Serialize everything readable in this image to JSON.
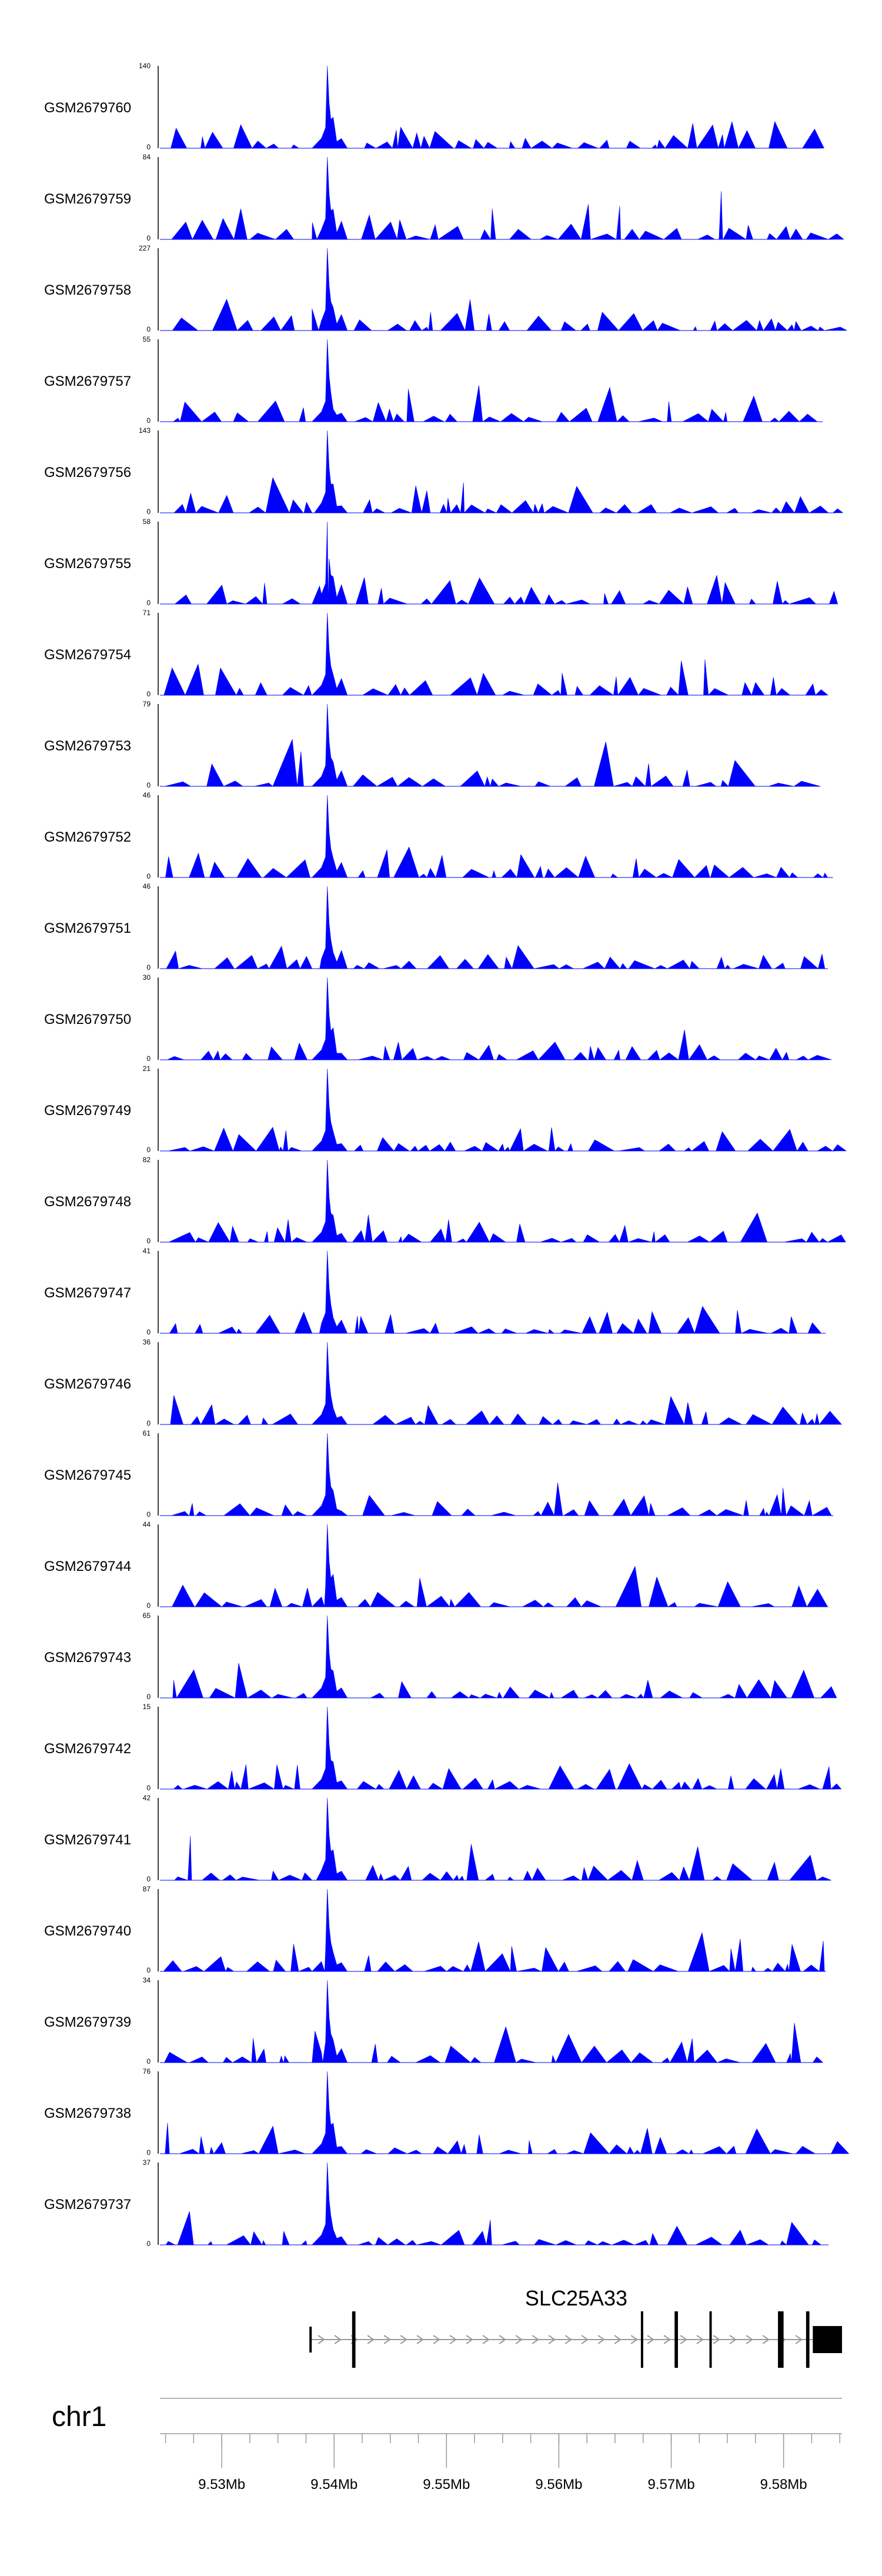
{
  "chart_data": {
    "type": "area",
    "title": "",
    "chromosome": "chr1",
    "color": "#0000ff",
    "axis_color": "#000000",
    "region": [
      9.5245,
      9.5852
    ],
    "axis_ticks": [
      {
        "value": 9.53,
        "label": "9.53Mb"
      },
      {
        "value": 9.54,
        "label": "9.54Mb"
      },
      {
        "value": 9.55,
        "label": "9.55Mb"
      },
      {
        "value": 9.56,
        "label": "9.56Mb"
      },
      {
        "value": 9.57,
        "label": "9.57Mb"
      },
      {
        "value": 9.58,
        "label": "9.58Mb"
      }
    ],
    "minor_tick_step": 0.0025,
    "peak_position": 9.5395,
    "tracks": [
      {
        "name": "GSM2679760",
        "ymax": "140",
        "ymin": "0",
        "max": 140
      },
      {
        "name": "GSM2679759",
        "ymax": "84",
        "ymin": "0",
        "max": 84
      },
      {
        "name": "GSM2679758",
        "ymax": "227",
        "ymin": "0",
        "max": 227
      },
      {
        "name": "GSM2679757",
        "ymax": "55",
        "ymin": "0",
        "max": 55
      },
      {
        "name": "GSM2679756",
        "ymax": "143",
        "ymin": "0",
        "max": 143
      },
      {
        "name": "GSM2679755",
        "ymax": "58",
        "ymin": "0",
        "max": 58
      },
      {
        "name": "GSM2679754",
        "ymax": "71",
        "ymin": "0",
        "max": 71
      },
      {
        "name": "GSM2679753",
        "ymax": "79",
        "ymin": "0",
        "max": 79
      },
      {
        "name": "GSM2679752",
        "ymax": "46",
        "ymin": "0",
        "max": 46
      },
      {
        "name": "GSM2679751",
        "ymax": "46",
        "ymin": "0",
        "max": 46
      },
      {
        "name": "GSM2679750",
        "ymax": "30",
        "ymin": "0",
        "max": 30
      },
      {
        "name": "GSM2679749",
        "ymax": "21",
        "ymin": "0",
        "max": 21
      },
      {
        "name": "GSM2679748",
        "ymax": "82",
        "ymin": "0",
        "max": 82
      },
      {
        "name": "GSM2679747",
        "ymax": "41",
        "ymin": "0",
        "max": 41
      },
      {
        "name": "GSM2679746",
        "ymax": "36",
        "ymin": "0",
        "max": 36
      },
      {
        "name": "GSM2679745",
        "ymax": "61",
        "ymin": "0",
        "max": 61
      },
      {
        "name": "GSM2679744",
        "ymax": "44",
        "ymin": "0",
        "max": 44
      },
      {
        "name": "GSM2679743",
        "ymax": "65",
        "ymin": "0",
        "max": 65
      },
      {
        "name": "GSM2679742",
        "ymax": "15",
        "ymin": "0",
        "max": 15
      },
      {
        "name": "GSM2679741",
        "ymax": "42",
        "ymin": "0",
        "max": 42
      },
      {
        "name": "GSM2679740",
        "ymax": "87",
        "ymin": "0",
        "max": 87
      },
      {
        "name": "GSM2679739",
        "ymax": "34",
        "ymin": "0",
        "max": 34
      },
      {
        "name": "GSM2679738",
        "ymax": "76",
        "ymin": "0",
        "max": 76
      },
      {
        "name": "GSM2679737",
        "ymax": "37",
        "ymin": "0",
        "max": 37
      }
    ],
    "gene": {
      "name": "SLC25A33",
      "strand": "+",
      "start": 9.5378,
      "end": 9.5852,
      "exons": [
        {
          "start": 9.5378,
          "end": 9.538
        },
        {
          "start": 9.5416,
          "end": 9.5419
        },
        {
          "start": 9.5673,
          "end": 9.5675
        },
        {
          "start": 9.5703,
          "end": 9.5706
        },
        {
          "start": 9.5734,
          "end": 9.5736
        },
        {
          "start": 9.5795,
          "end": 9.58
        },
        {
          "start": 9.582,
          "end": 9.5823
        },
        {
          "start": 9.5826,
          "end": 9.5852
        }
      ]
    }
  }
}
